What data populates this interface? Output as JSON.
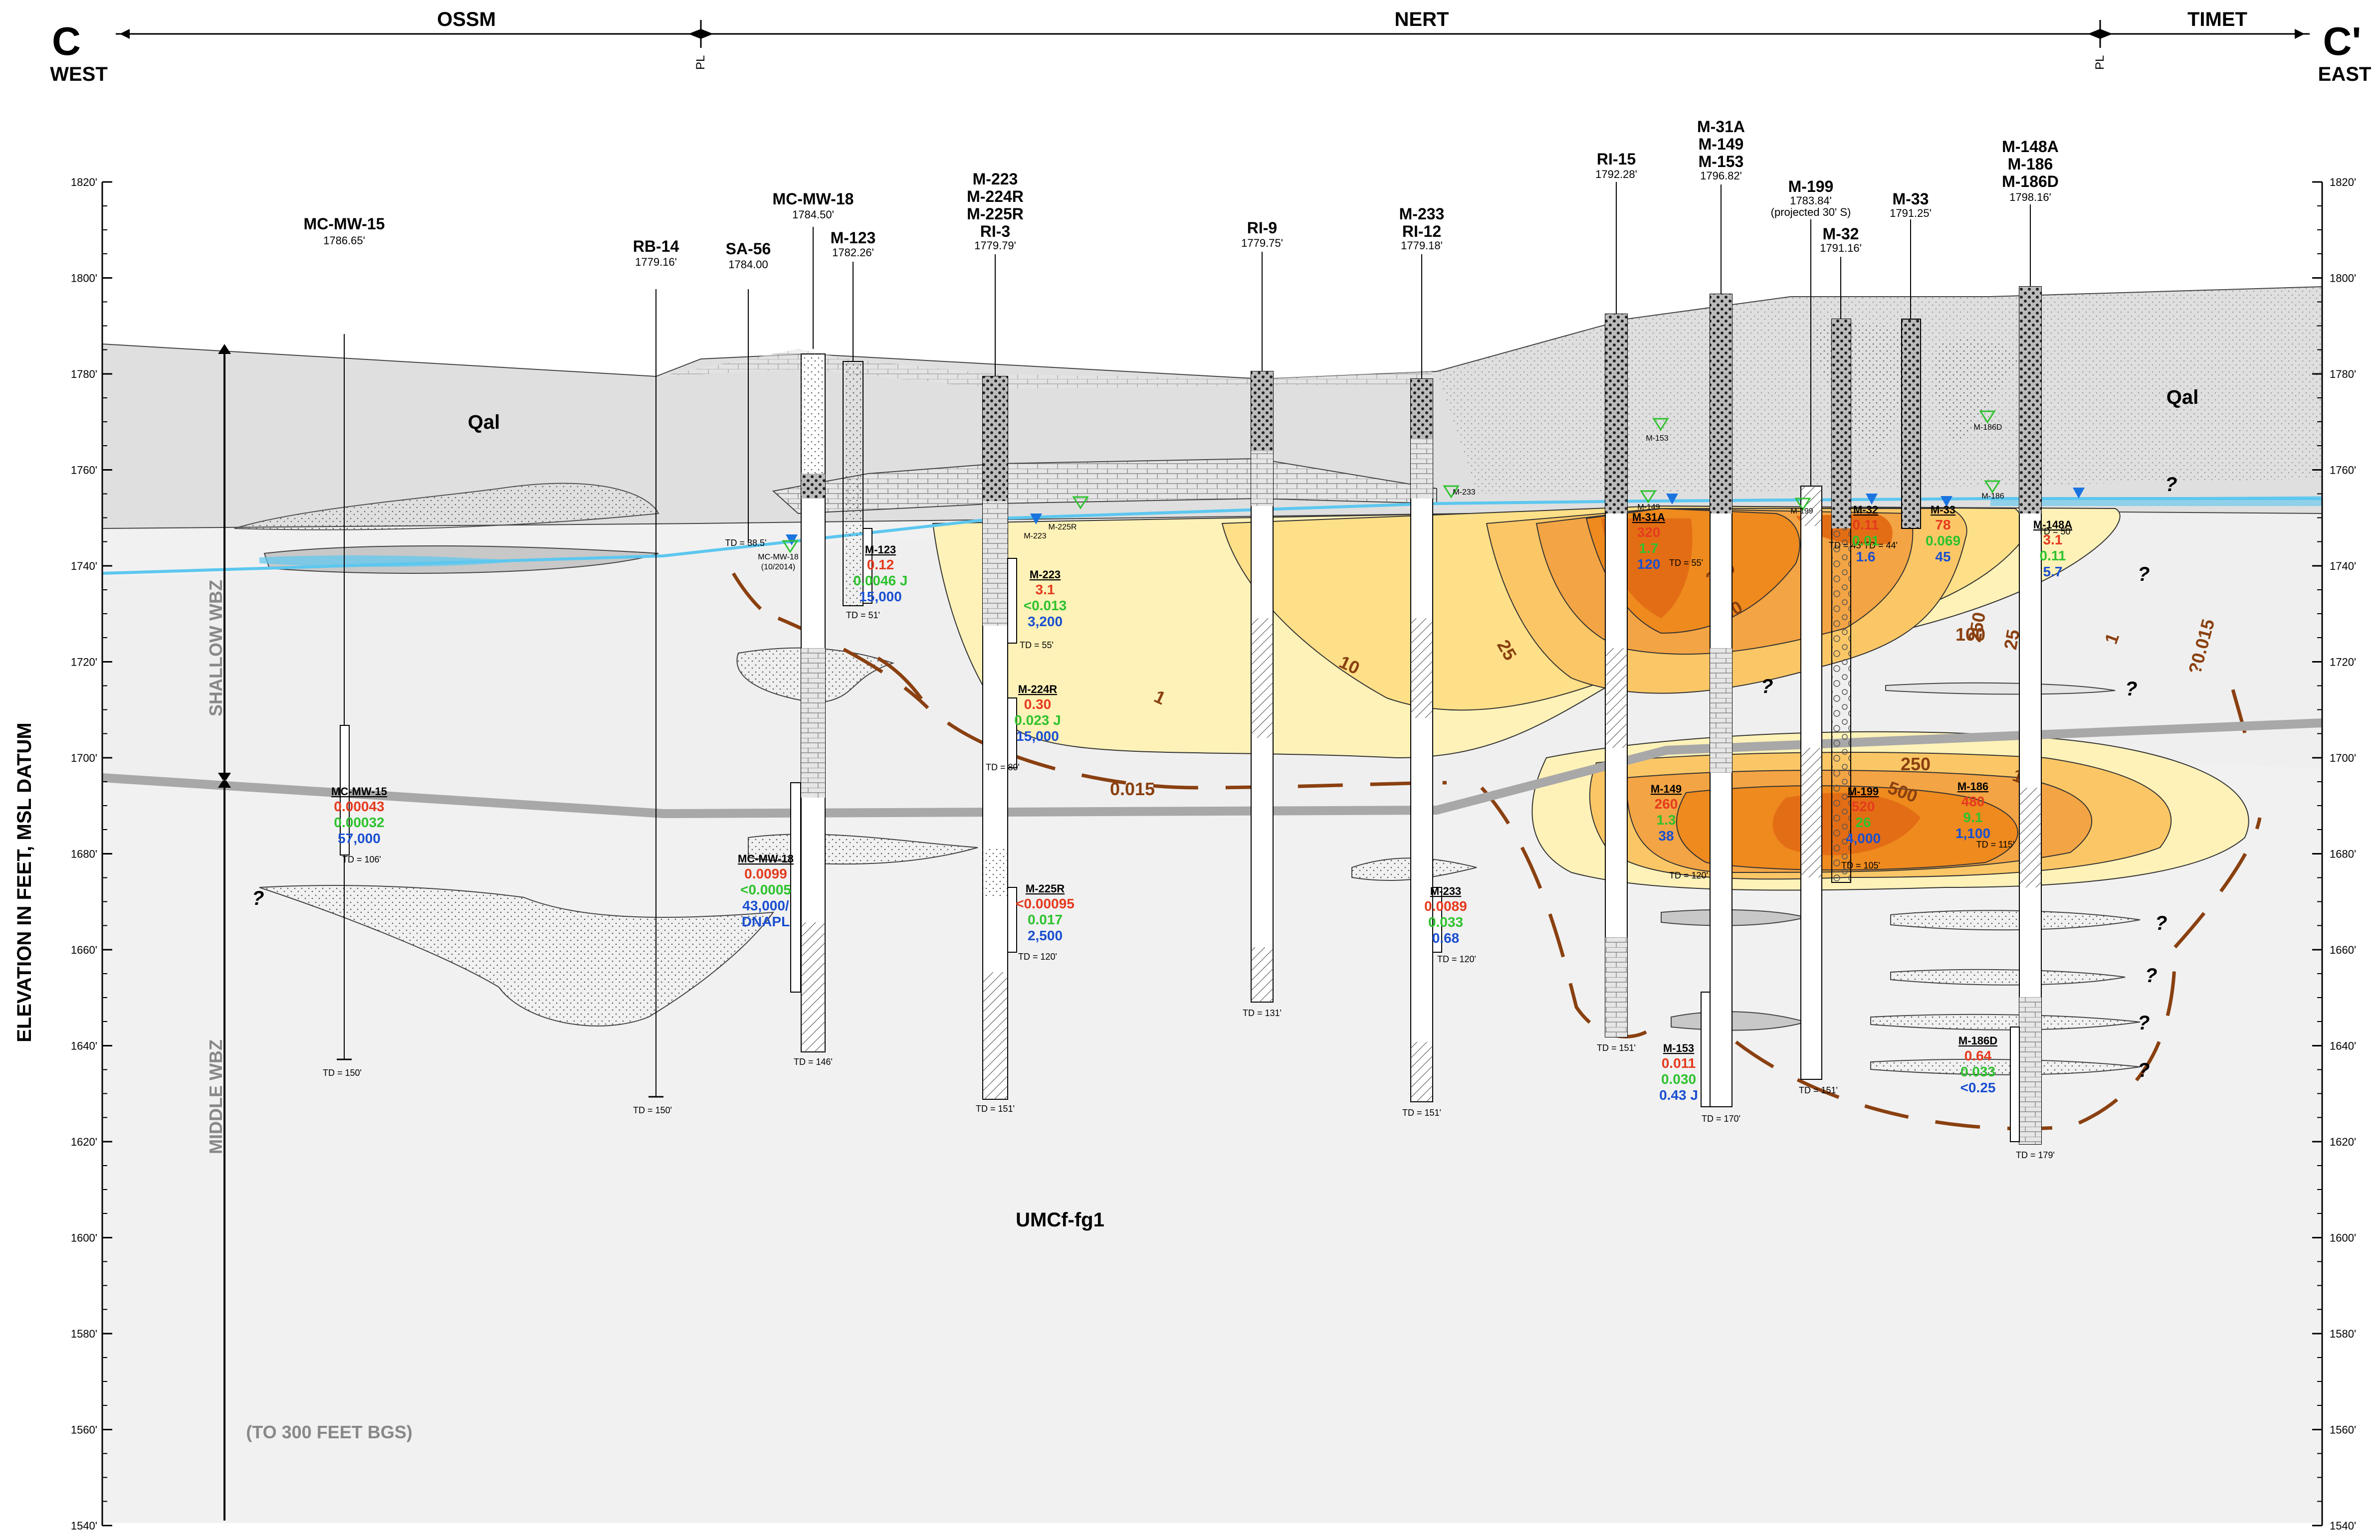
{
  "header": {
    "left_letter": "C",
    "left_dir": "WEST",
    "right_letter": "C'",
    "right_dir": "EAST",
    "zones": [
      "OSSM",
      "NERT",
      "TIMET"
    ],
    "pl_symbol": "PL"
  },
  "axis": {
    "ylabel": "ELEVATION IN FEET, MSL DATUM",
    "ticks": [
      "1820'",
      "1800'",
      "1780'",
      "1760'",
      "1740'",
      "1720'",
      "1700'",
      "1680'",
      "1660'",
      "1640'",
      "1620'",
      "1600'",
      "1580'",
      "1560'",
      "1540'"
    ],
    "shallow": "SHALLOW WBZ",
    "middle": "MIDDLE WBZ"
  },
  "units": {
    "qal": "Qal",
    "umcf": "UMCf-fg1",
    "depth_note": "(TO 300 FEET BGS)"
  },
  "contour_labels": [
    "0.015",
    "1",
    "10",
    "25",
    "100",
    "250",
    "250",
    "100",
    "25",
    "1",
    "?0.015",
    "250",
    "500",
    "100"
  ],
  "question": "?",
  "wells": [
    {
      "name": [
        "MC-MW-15"
      ],
      "elev": "1786.65'",
      "td": "TD = 150'"
    },
    {
      "name": [
        "RB-14"
      ],
      "elev": "1779.16'",
      "td": "TD = 150'"
    },
    {
      "name": [
        "SA-56"
      ],
      "elev": "1784.00",
      "td": "TD = 38.5'"
    },
    {
      "name": [
        "MC-MW-18"
      ],
      "elev": "1784.50'",
      "td": "TD = 146'"
    },
    {
      "name": [
        "M-123"
      ],
      "elev": "1782.26'",
      "td": "TD = 51'"
    },
    {
      "name": [
        "M-223",
        "M-224R",
        "M-225R",
        "RI-3"
      ],
      "elev": "1779.79'",
      "td": "TD = 151'"
    },
    {
      "name": [
        "RI-9"
      ],
      "elev": "1779.75'",
      "td": "TD = 131'"
    },
    {
      "name": [
        "M-233",
        "RI-12"
      ],
      "elev": "1779.18'",
      "td": "TD = 151'"
    },
    {
      "name": [
        "RI-15"
      ],
      "elev": "1792.28'",
      "td": "TD = 151'"
    },
    {
      "name": [
        "M-31A",
        "M-149",
        "M-153"
      ],
      "elev": "1796.82'",
      "td": "TD = 170'"
    },
    {
      "name": [
        "M-199"
      ],
      "elev": "1783.84'",
      "note": "(projected 30' S)",
      "td": "TD = 151'"
    },
    {
      "name": [
        "M-32"
      ],
      "elev": "1791.16'",
      "td": "TD = 105'"
    },
    {
      "name": [
        "M-33"
      ],
      "elev": "1791.25'",
      "td": "TD = 44'"
    },
    {
      "name": [
        "M-148A",
        "M-186",
        "M-186D"
      ],
      "elev": "1798.16'",
      "td": "TD = 179'"
    }
  ],
  "results": [
    {
      "well": "MC-MW-15",
      "v1": "0.00043",
      "v2": "0.00032",
      "v3": "57,000",
      "td": "TD = 106'"
    },
    {
      "well": "M-123",
      "v1": "0.12",
      "v2": "0.0046 J",
      "v3": "15,000"
    },
    {
      "well": "M-223",
      "v1": "3.1",
      "v2": "<0.013",
      "v3": "3,200",
      "td": "TD = 55'"
    },
    {
      "well": "M-224R",
      "v1": "0.30",
      "v2": "0.023 J",
      "v3": "15,000",
      "td": "TD = 80'"
    },
    {
      "well": "MC-MW-18",
      "v1": "0.0099",
      "v2": "<0.0005",
      "v3": "43,000/",
      "v4": "DNAPL"
    },
    {
      "well": "M-225R",
      "v1": "<0.00095",
      "v2": "0.017",
      "v3": "2,500",
      "td": "TD = 120'"
    },
    {
      "well": "M-233",
      "v1": "0.0089",
      "v2": "0.033",
      "v3": "0.68",
      "td": "TD = 120'"
    },
    {
      "well": "M-31A",
      "v1": "320",
      "v2": "1.7",
      "v3": "120",
      "td": "TD = 55'"
    },
    {
      "well": "M-149",
      "v1": "260",
      "v2": "1.3",
      "v3": "38",
      "td": "TD = 120'"
    },
    {
      "well": "M-153",
      "v1": "0.011",
      "v2": "0.030",
      "v3": "0.43 J"
    },
    {
      "well": "M-32",
      "v1": "0.11",
      "v2": "0.01",
      "v3": "1.6",
      "td": "TD = 45'"
    },
    {
      "well": "M-33",
      "v1": "78",
      "v2": "0.069",
      "v3": "45"
    },
    {
      "well": "M-199",
      "v1": "520",
      "v2": "26",
      "v3": "4,000"
    },
    {
      "well": "M-186",
      "v1": "480",
      "v2": "9.1",
      "v3": "1,100",
      "td": "TD = 115'"
    },
    {
      "well": "M-148A",
      "v1": "3.1",
      "v2": "0.11",
      "v3": "5.7",
      "td": "TD = 50'"
    },
    {
      "well": "M-186D",
      "v1": "0.64",
      "v2": "0.033",
      "v3": "<0.25"
    }
  ],
  "water_labels": [
    "MC-MW-18",
    "(10/2014)",
    "M-223",
    "M-225R",
    "M-233",
    "M-153",
    "M-149",
    "M-199",
    "M-186D",
    "M-186"
  ],
  "colors": {
    "red": "#e53a1e",
    "green": "#2ec22e",
    "blue": "#1a4fd0",
    "contour": "#8a4010",
    "water": "#5cc7ef",
    "plume_low": "#fff2b8",
    "plume_mid": "#fbc766",
    "plume_high": "#ee8a1e",
    "plume_core": "#e36d14"
  }
}
